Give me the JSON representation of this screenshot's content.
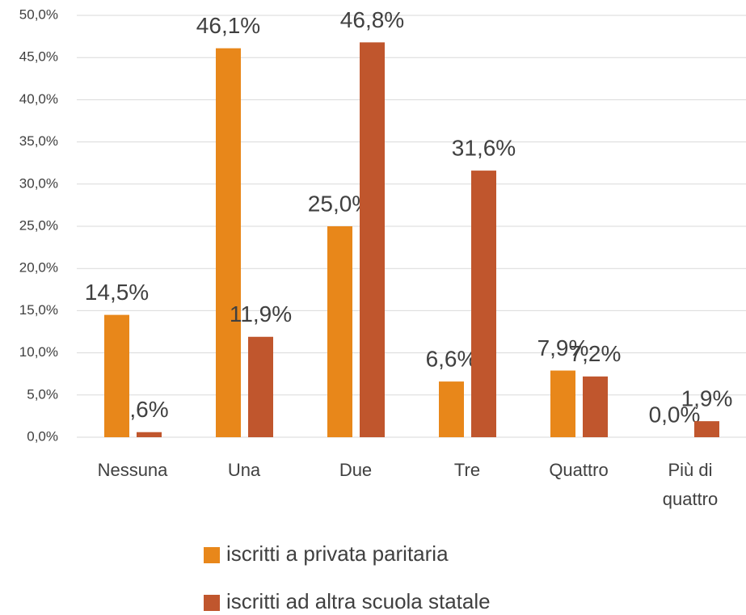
{
  "chart_data": {
    "type": "bar",
    "categories": [
      "Nessuna",
      "Una",
      "Due",
      "Tre",
      "Quattro",
      "Più di quattro"
    ],
    "series": [
      {
        "name": "iscritti a privata paritaria",
        "color": "#e8871a",
        "values": [
          14.5,
          46.1,
          25.0,
          6.6,
          7.9,
          0.0
        ],
        "value_labels": [
          "14,5%",
          "46,1%",
          "25,0%",
          "6,6%",
          "7,9%",
          "0,0%"
        ]
      },
      {
        "name": "iscritti ad altra scuola statale",
        "color": "#c0562d",
        "values": [
          0.6,
          11.9,
          46.8,
          31.6,
          7.2,
          1.9
        ],
        "value_labels": [
          ",6%",
          "11,9%",
          "46,8%",
          "31,6%",
          "7,2%",
          "1,9%"
        ]
      }
    ],
    "ylim": [
      0,
      50
    ],
    "yticks": [
      {
        "value": 0,
        "label": "0,0%"
      },
      {
        "value": 5,
        "label": "5,0%"
      },
      {
        "value": 10,
        "label": "10,0%"
      },
      {
        "value": 15,
        "label": "15,0%"
      },
      {
        "value": 20,
        "label": "20,0%"
      },
      {
        "value": 25,
        "label": "25,0%"
      },
      {
        "value": 30,
        "label": "30,0%"
      },
      {
        "value": 35,
        "label": "35,0%"
      },
      {
        "value": 40,
        "label": "40,0%"
      },
      {
        "value": 45,
        "label": "45,0%"
      },
      {
        "value": 50,
        "label": "50,0%"
      }
    ],
    "grid": true,
    "legend": "bottom"
  }
}
